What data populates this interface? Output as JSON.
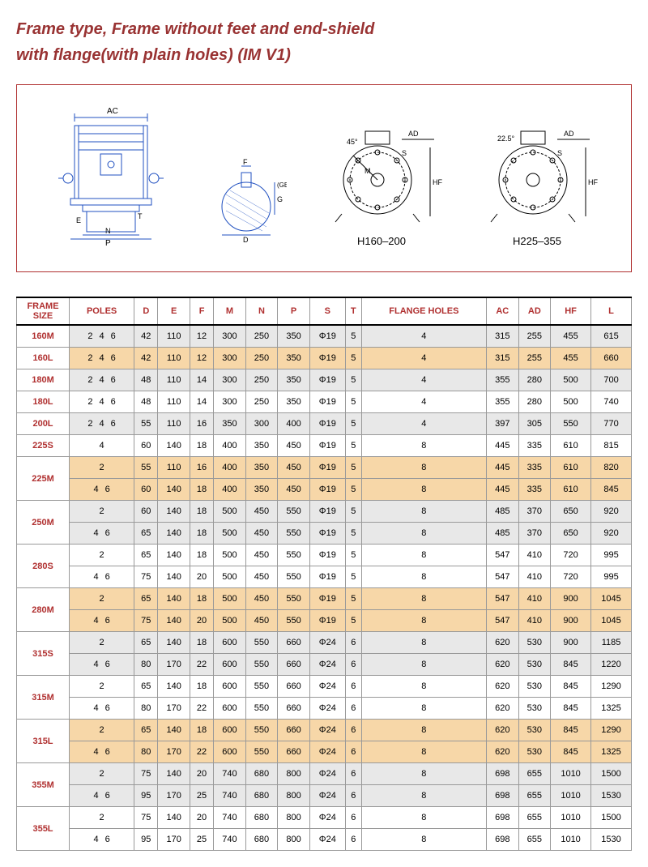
{
  "title_line1": "Frame type, Frame without feet and end-shield",
  "title_line2": "with flange(with plain holes) (IM V1)",
  "diagram_labels": {
    "d1_ac": "AC",
    "d1_n": "N",
    "d1_p": "P",
    "d1_e": "E",
    "d1_t": "T",
    "d2_f": "F",
    "d2_d": "D",
    "d2_g": "G",
    "d2_ge": "(GE)",
    "d3_ad": "AD",
    "d3_s": "S",
    "d3_m": "M",
    "d3_hf": "HF",
    "d3_45": "45°",
    "d4_ad": "AD",
    "d4_s": "S",
    "d4_hf": "HF",
    "d4_225": "22.5°",
    "sub1": "H160–200",
    "sub2": "H225–355"
  },
  "headers": [
    "FRAME SIZE",
    "POLES",
    "D",
    "E",
    "F",
    "M",
    "N",
    "P",
    "S",
    "T",
    "FLANGE HOLES",
    "AC",
    "AD",
    "HF",
    "L"
  ],
  "rows": [
    {
      "fs": "160M",
      "span": 1,
      "poles": "2  4  6",
      "d": "42",
      "e": "110",
      "f": "12",
      "m": "300",
      "n": "250",
      "p": "350",
      "s": "Φ19",
      "t": "5",
      "fh": "4",
      "ac": "315",
      "ad": "255",
      "hf": "455",
      "l": "615",
      "shade": "gray"
    },
    {
      "fs": "160L",
      "span": 1,
      "poles": "2  4  6",
      "d": "42",
      "e": "110",
      "f": "12",
      "m": "300",
      "n": "250",
      "p": "350",
      "s": "Φ19",
      "t": "5",
      "fh": "4",
      "ac": "315",
      "ad": "255",
      "hf": "455",
      "l": "660",
      "shade": "orange"
    },
    {
      "fs": "180M",
      "span": 1,
      "poles": "2  4  6",
      "d": "48",
      "e": "110",
      "f": "14",
      "m": "300",
      "n": "250",
      "p": "350",
      "s": "Φ19",
      "t": "5",
      "fh": "4",
      "ac": "355",
      "ad": "280",
      "hf": "500",
      "l": "700",
      "shade": "gray"
    },
    {
      "fs": "180L",
      "span": 1,
      "poles": "2  4  6",
      "d": "48",
      "e": "110",
      "f": "14",
      "m": "300",
      "n": "250",
      "p": "350",
      "s": "Φ19",
      "t": "5",
      "fh": "4",
      "ac": "355",
      "ad": "280",
      "hf": "500",
      "l": "740",
      "shade": "white"
    },
    {
      "fs": "200L",
      "span": 1,
      "poles": "2  4  6",
      "d": "55",
      "e": "110",
      "f": "16",
      "m": "350",
      "n": "300",
      "p": "400",
      "s": "Φ19",
      "t": "5",
      "fh": "4",
      "ac": "397",
      "ad": "305",
      "hf": "550",
      "l": "770",
      "shade": "gray"
    },
    {
      "fs": "225S",
      "span": 1,
      "poles": "4",
      "d": "60",
      "e": "140",
      "f": "18",
      "m": "400",
      "n": "350",
      "p": "450",
      "s": "Φ19",
      "t": "5",
      "fh": "8",
      "ac": "445",
      "ad": "335",
      "hf": "610",
      "l": "815",
      "shade": "white"
    },
    {
      "fs": "225M",
      "span": 2,
      "poles": "2",
      "d": "55",
      "e": "110",
      "f": "16",
      "m": "400",
      "n": "350",
      "p": "450",
      "s": "Φ19",
      "t": "5",
      "fh": "8",
      "ac": "445",
      "ad": "335",
      "hf": "610",
      "l": "820",
      "shade": "orange"
    },
    {
      "poles": "4  6",
      "d": "60",
      "e": "140",
      "f": "18",
      "m": "400",
      "n": "350",
      "p": "450",
      "s": "Φ19",
      "t": "5",
      "fh": "8",
      "ac": "445",
      "ad": "335",
      "hf": "610",
      "l": "845",
      "shade": "orange"
    },
    {
      "fs": "250M",
      "span": 2,
      "poles": "2",
      "d": "60",
      "e": "140",
      "f": "18",
      "m": "500",
      "n": "450",
      "p": "550",
      "s": "Φ19",
      "t": "5",
      "fh": "8",
      "ac": "485",
      "ad": "370",
      "hf": "650",
      "l": "920",
      "shade": "gray"
    },
    {
      "poles": "4  6",
      "d": "65",
      "e": "140",
      "f": "18",
      "m": "500",
      "n": "450",
      "p": "550",
      "s": "Φ19",
      "t": "5",
      "fh": "8",
      "ac": "485",
      "ad": "370",
      "hf": "650",
      "l": "920",
      "shade": "gray"
    },
    {
      "fs": "280S",
      "span": 2,
      "poles": "2",
      "d": "65",
      "e": "140",
      "f": "18",
      "m": "500",
      "n": "450",
      "p": "550",
      "s": "Φ19",
      "t": "5",
      "fh": "8",
      "ac": "547",
      "ad": "410",
      "hf": "720",
      "l": "995",
      "shade": "white"
    },
    {
      "poles": "4  6",
      "d": "75",
      "e": "140",
      "f": "20",
      "m": "500",
      "n": "450",
      "p": "550",
      "s": "Φ19",
      "t": "5",
      "fh": "8",
      "ac": "547",
      "ad": "410",
      "hf": "720",
      "l": "995",
      "shade": "white"
    },
    {
      "fs": "280M",
      "span": 2,
      "poles": "2",
      "d": "65",
      "e": "140",
      "f": "18",
      "m": "500",
      "n": "450",
      "p": "550",
      "s": "Φ19",
      "t": "5",
      "fh": "8",
      "ac": "547",
      "ad": "410",
      "hf": "900",
      "l": "1045",
      "shade": "orange"
    },
    {
      "poles": "4  6",
      "d": "75",
      "e": "140",
      "f": "20",
      "m": "500",
      "n": "450",
      "p": "550",
      "s": "Φ19",
      "t": "5",
      "fh": "8",
      "ac": "547",
      "ad": "410",
      "hf": "900",
      "l": "1045",
      "shade": "orange"
    },
    {
      "fs": "315S",
      "span": 2,
      "poles": "2",
      "d": "65",
      "e": "140",
      "f": "18",
      "m": "600",
      "n": "550",
      "p": "660",
      "s": "Φ24",
      "t": "6",
      "fh": "8",
      "ac": "620",
      "ad": "530",
      "hf": "900",
      "l": "1185",
      "shade": "gray"
    },
    {
      "poles": "4  6",
      "d": "80",
      "e": "170",
      "f": "22",
      "m": "600",
      "n": "550",
      "p": "660",
      "s": "Φ24",
      "t": "6",
      "fh": "8",
      "ac": "620",
      "ad": "530",
      "hf": "845",
      "l": "1220",
      "shade": "gray"
    },
    {
      "fs": "315M",
      "span": 2,
      "poles": "2",
      "d": "65",
      "e": "140",
      "f": "18",
      "m": "600",
      "n": "550",
      "p": "660",
      "s": "Φ24",
      "t": "6",
      "fh": "8",
      "ac": "620",
      "ad": "530",
      "hf": "845",
      "l": "1290",
      "shade": "white"
    },
    {
      "poles": "4  6",
      "d": "80",
      "e": "170",
      "f": "22",
      "m": "600",
      "n": "550",
      "p": "660",
      "s": "Φ24",
      "t": "6",
      "fh": "8",
      "ac": "620",
      "ad": "530",
      "hf": "845",
      "l": "1325",
      "shade": "white"
    },
    {
      "fs": "315L",
      "span": 2,
      "poles": "2",
      "d": "65",
      "e": "140",
      "f": "18",
      "m": "600",
      "n": "550",
      "p": "660",
      "s": "Φ24",
      "t": "6",
      "fh": "8",
      "ac": "620",
      "ad": "530",
      "hf": "845",
      "l": "1290",
      "shade": "orange"
    },
    {
      "poles": "4  6",
      "d": "80",
      "e": "170",
      "f": "22",
      "m": "600",
      "n": "550",
      "p": "660",
      "s": "Φ24",
      "t": "6",
      "fh": "8",
      "ac": "620",
      "ad": "530",
      "hf": "845",
      "l": "1325",
      "shade": "orange"
    },
    {
      "fs": "355M",
      "span": 2,
      "poles": "2",
      "d": "75",
      "e": "140",
      "f": "20",
      "m": "740",
      "n": "680",
      "p": "800",
      "s": "Φ24",
      "t": "6",
      "fh": "8",
      "ac": "698",
      "ad": "655",
      "hf": "1010",
      "l": "1500",
      "shade": "gray"
    },
    {
      "poles": "4  6",
      "d": "95",
      "e": "170",
      "f": "25",
      "m": "740",
      "n": "680",
      "p": "800",
      "s": "Φ24",
      "t": "6",
      "fh": "8",
      "ac": "698",
      "ad": "655",
      "hf": "1010",
      "l": "1530",
      "shade": "gray"
    },
    {
      "fs": "355L",
      "span": 2,
      "poles": "2",
      "d": "75",
      "e": "140",
      "f": "20",
      "m": "740",
      "n": "680",
      "p": "800",
      "s": "Φ24",
      "t": "6",
      "fh": "8",
      "ac": "698",
      "ad": "655",
      "hf": "1010",
      "l": "1500",
      "shade": "white"
    },
    {
      "poles": "4  6",
      "d": "95",
      "e": "170",
      "f": "25",
      "m": "740",
      "n": "680",
      "p": "800",
      "s": "Φ24",
      "t": "6",
      "fh": "8",
      "ac": "698",
      "ad": "655",
      "hf": "1010",
      "l": "1530",
      "shade": "white"
    }
  ]
}
